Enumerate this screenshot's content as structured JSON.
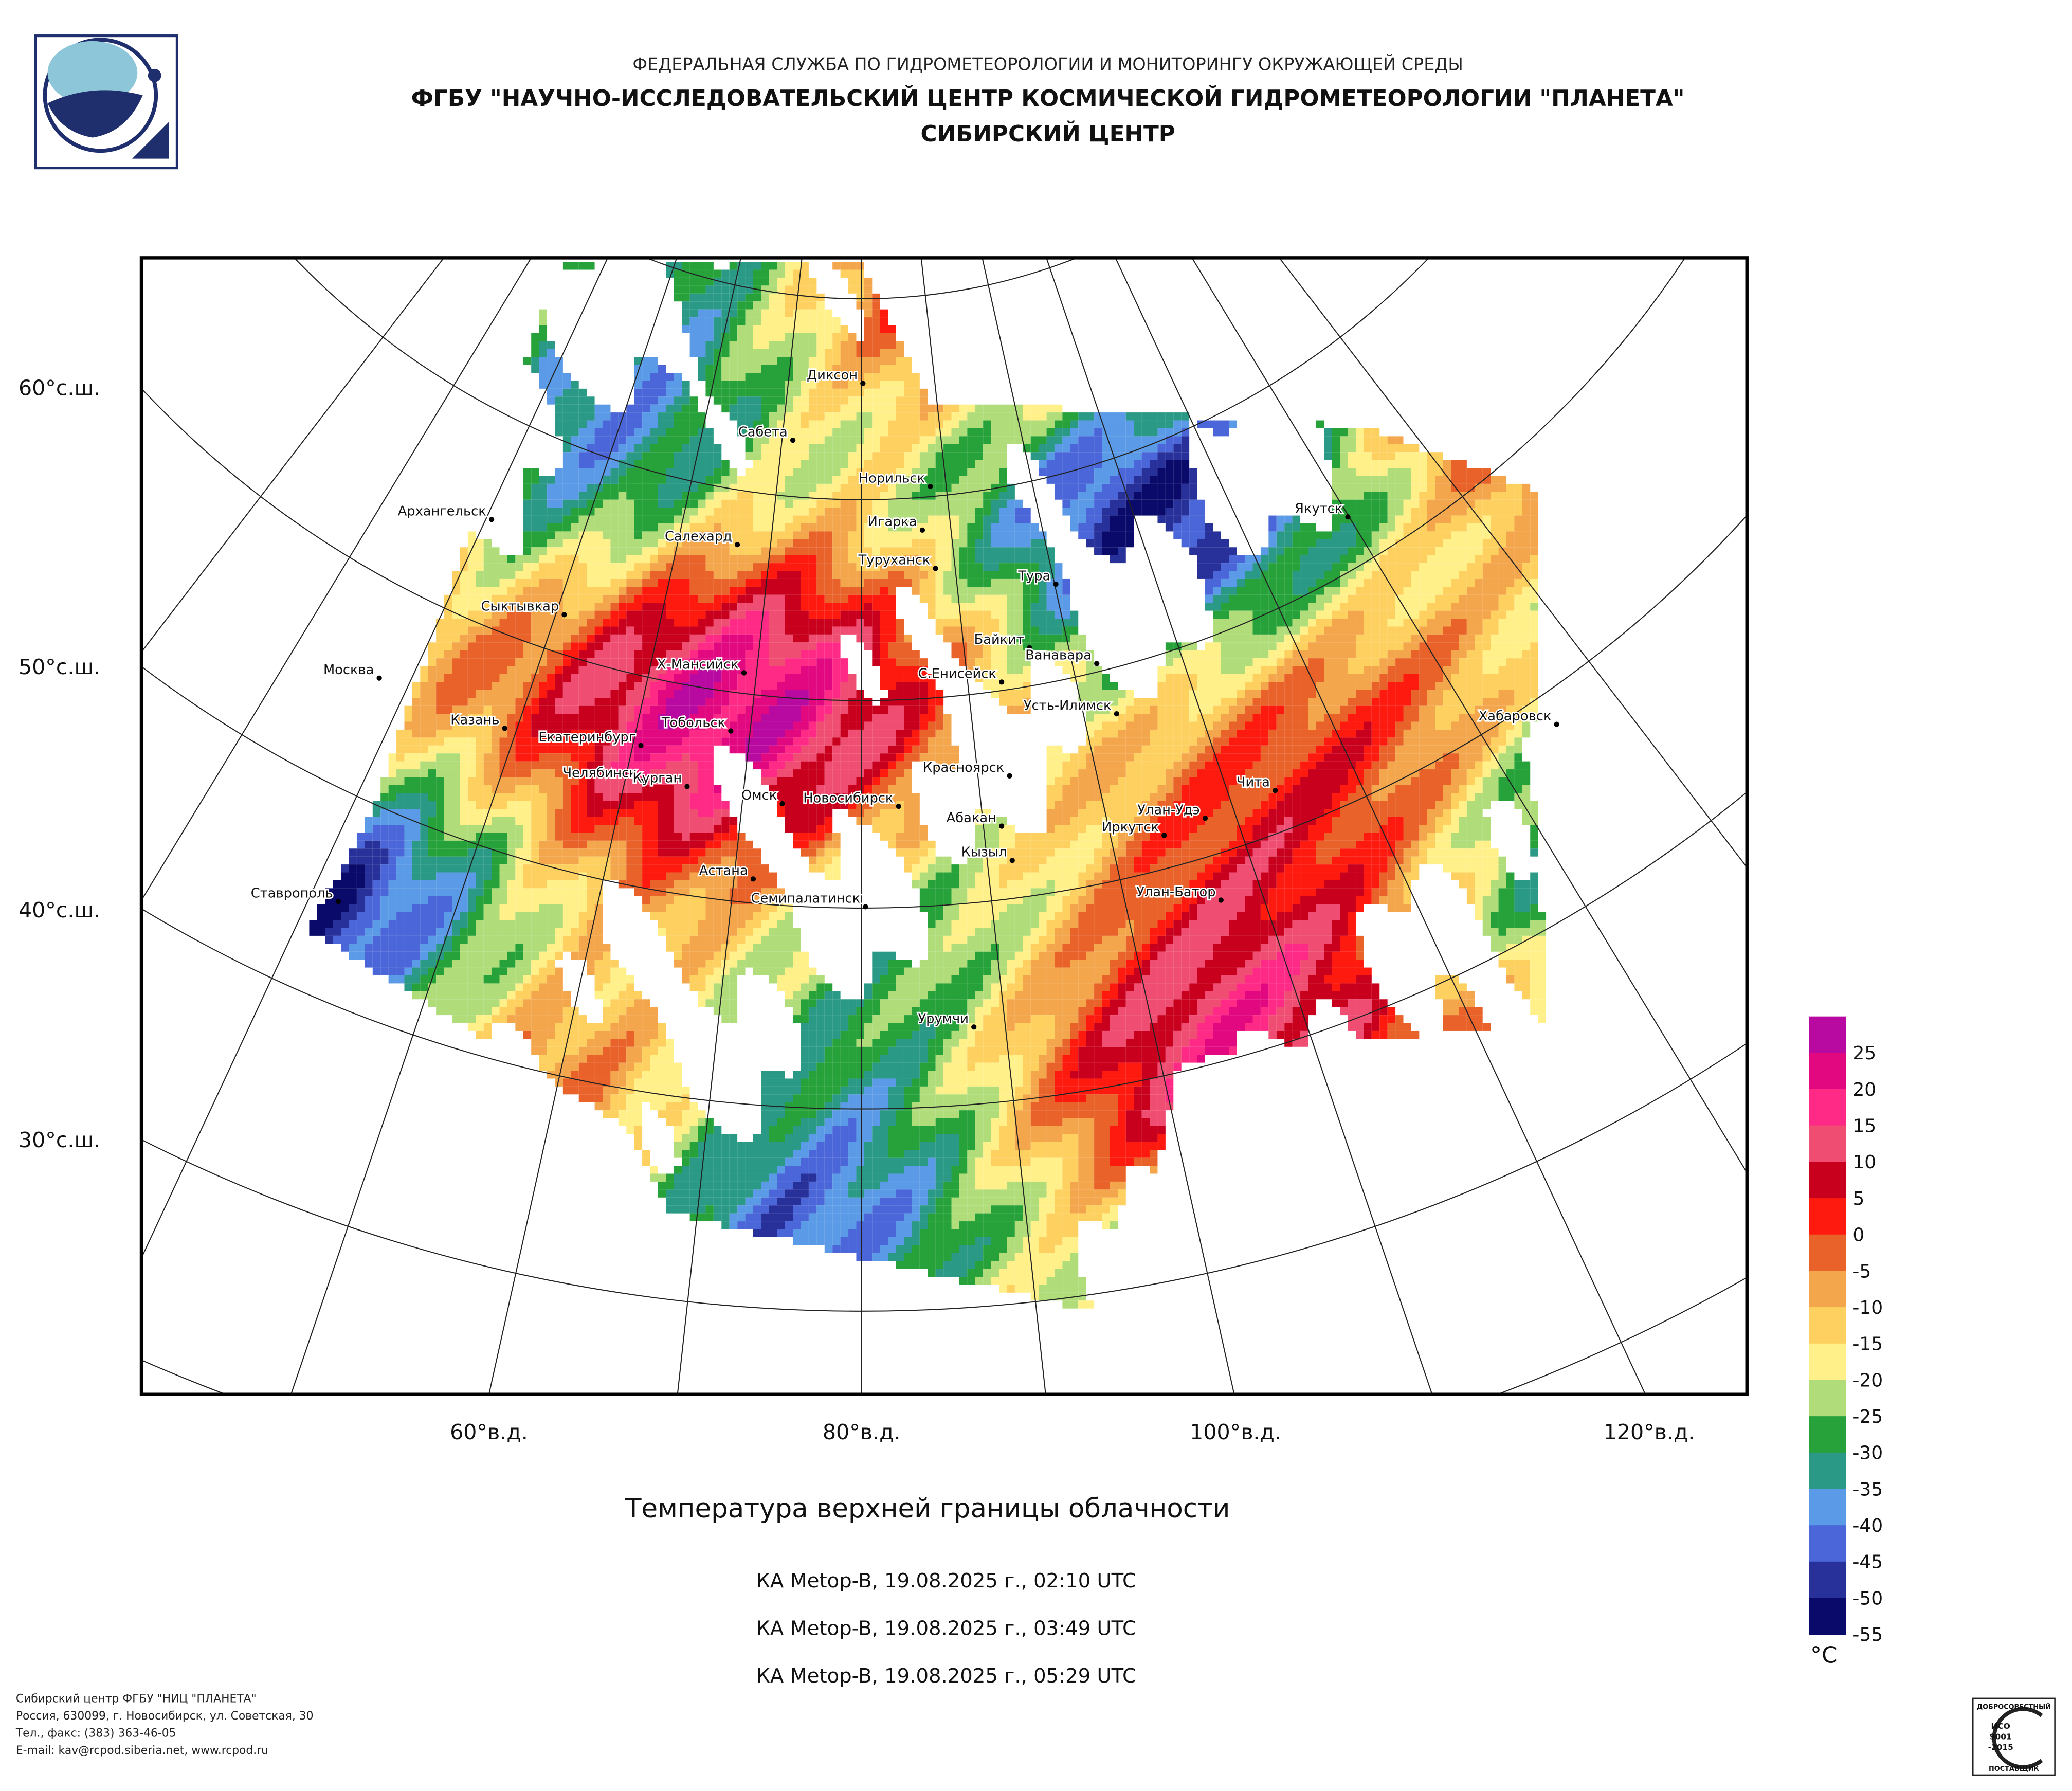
{
  "header": {
    "agency": "ФЕДЕРАЛЬНАЯ СЛУЖБА ПО ГИДРОМЕТЕОРОЛОГИИ И МОНИТОРИНГУ ОКРУЖАЮЩЕЙ СРЕДЫ",
    "institute": "ФГБУ \"НАУЧНО-ИССЛЕДОВАТЕЛЬСКИЙ ЦЕНТР КОСМИЧЕСКОЙ ГИДРОМЕТЕОРОЛОГИИ \"ПЛАНЕТА\"",
    "center": "СИБИРСКИЙ ЦЕНТР"
  },
  "map": {
    "lat_labels": [
      "60°с.ш.",
      "50°с.ш.",
      "40°с.ш.",
      "30°с.ш."
    ],
    "lon_labels": [
      "60°в.д.",
      "80°в.д.",
      "100°в.д.",
      "120°в.д."
    ],
    "cities": [
      "Диксон",
      "Сабета",
      "Норильск",
      "Архангельск",
      "Якутск",
      "Игарка",
      "Салехард",
      "Туруханск",
      "Тура",
      "Сыктывкар",
      "Байкит",
      "Ванавара",
      "Москва",
      "Х-Мансийск",
      "С.Енисейск",
      "Усть-Илимск",
      "Хабаровск",
      "Казань",
      "Тобольск",
      "Екатеринбург",
      "Красноярск",
      "Челябинск",
      "Курган",
      "Чита",
      "Омск",
      "Новосибирск",
      "Улан-Удэ",
      "Абакан",
      "Иркутск",
      "Кызыл",
      "Астана",
      "Ставрополь",
      "Семипалатинск",
      "Улан-Батор",
      "Урумчи"
    ]
  },
  "legend": {
    "unit": "°C",
    "items": [
      {
        "value": 25,
        "color": "#b80aa0"
      },
      {
        "value": 20,
        "color": "#e2087f"
      },
      {
        "value": 15,
        "color": "#ff2a86"
      },
      {
        "value": 10,
        "color": "#f04d72"
      },
      {
        "value": 5,
        "color": "#c8001e"
      },
      {
        "value": 0,
        "color": "#ff1a10"
      },
      {
        "value": -5,
        "color": "#e8622a"
      },
      {
        "value": -10,
        "color": "#f4a64d"
      },
      {
        "value": -15,
        "color": "#fdd060"
      },
      {
        "value": -20,
        "color": "#fff08a"
      },
      {
        "value": -25,
        "color": "#b0dd7a"
      },
      {
        "value": -30,
        "color": "#27a23a"
      },
      {
        "value": -35,
        "color": "#2a9a86"
      },
      {
        "value": -40,
        "color": "#5a9ae6"
      },
      {
        "value": -45,
        "color": "#4a66d8"
      },
      {
        "value": -50,
        "color": "#28309a"
      },
      {
        "value": -55,
        "color": "#0a0a6a"
      }
    ]
  },
  "caption": {
    "title": "Температура верхней границы облачности",
    "passes": [
      "КА Metop-B, 19.08.2025 г., 02:10 UTC",
      "КА Metop-B, 19.08.2025 г., 03:49 UTC",
      "КА Metop-B, 19.08.2025 г., 05:29 UTC"
    ]
  },
  "footer": {
    "lines": [
      "Сибирский центр ФГБУ \"НИЦ \"ПЛАНЕТА\"",
      "Россия, 630099, г. Новосибирск, ул. Советская, 30",
      "Тел., факс: (383) 363-46-05",
      "E-mail: kav@rcpod.siberia.net, www.rcpod.ru"
    ],
    "badge": {
      "top": "ДОБРОСОВЕСТНЫЙ",
      "iso": "ИСО",
      "number": "9001",
      "year": "-2015",
      "bottom": "ПОСТАВЩИК"
    }
  }
}
